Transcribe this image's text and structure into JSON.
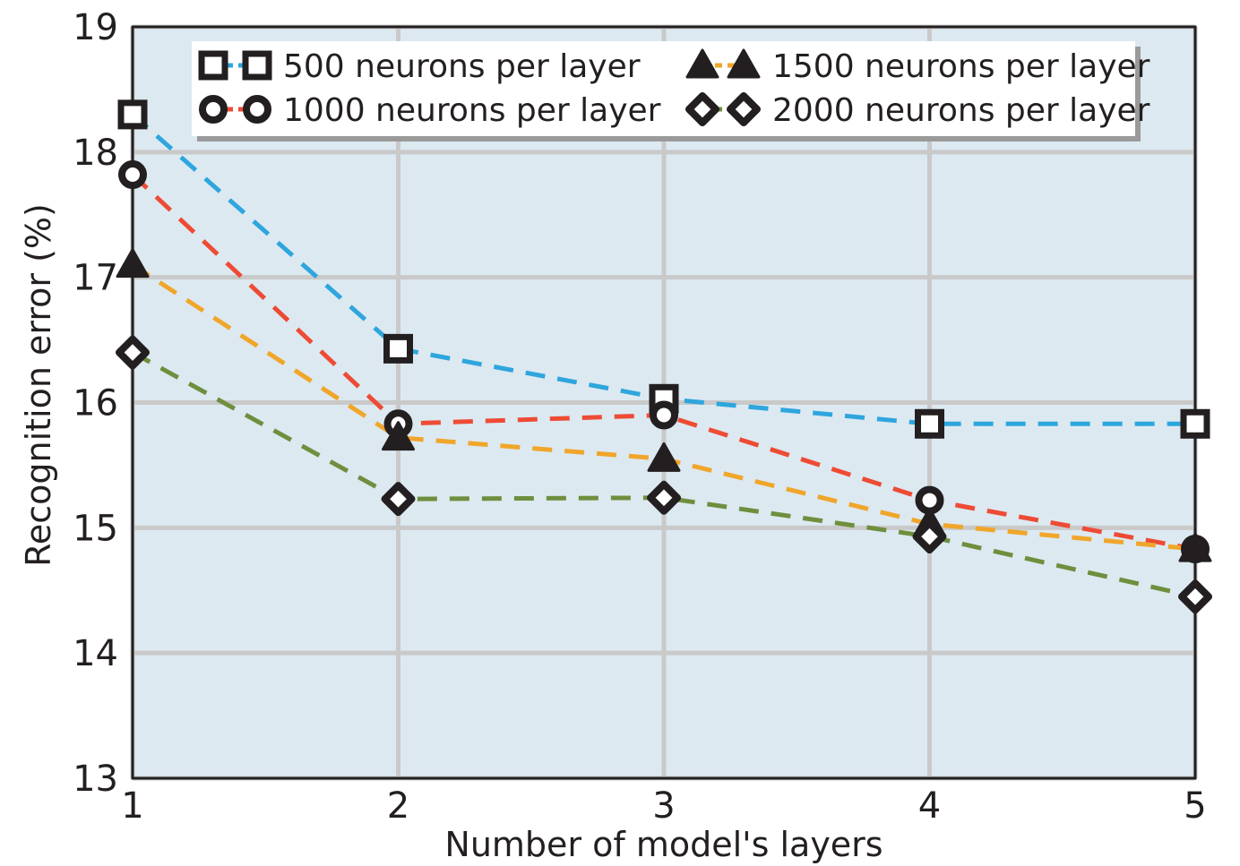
{
  "chart_data": {
    "type": "line",
    "title": "",
    "xlabel": "Number of model's layers",
    "ylabel": "Recognition error (%)",
    "x": [
      1,
      2,
      3,
      4,
      5
    ],
    "xlim": [
      1,
      5
    ],
    "ylim": [
      13,
      19
    ],
    "xticks": [
      "1",
      "2",
      "3",
      "4",
      "5"
    ],
    "yticks": [
      "13",
      "14",
      "15",
      "16",
      "17",
      "18",
      "19"
    ],
    "grid": true,
    "legend_position": "top",
    "series": [
      {
        "name": "500 neurons per layer",
        "marker": "square",
        "color": "#2ea6dd",
        "values": [
          18.3,
          16.43,
          16.03,
          15.83,
          15.83
        ]
      },
      {
        "name": "1000 neurons per layer",
        "marker": "circle",
        "color": "#ee4b35",
        "values": [
          17.82,
          15.83,
          15.9,
          15.22,
          14.83
        ]
      },
      {
        "name": "1500 neurons per layer",
        "marker": "triangle",
        "color": "#f0a62a",
        "values": [
          17.1,
          15.72,
          15.55,
          15.03,
          14.83
        ]
      },
      {
        "name": "2000 neurons per layer",
        "marker": "diamond",
        "color": "#6e8f3e",
        "values": [
          16.4,
          15.23,
          15.24,
          14.93,
          14.45
        ]
      }
    ],
    "colors": {
      "plot_background": "#dde9f1",
      "grid": "#c9c9c9",
      "axis": "#231f20"
    }
  }
}
